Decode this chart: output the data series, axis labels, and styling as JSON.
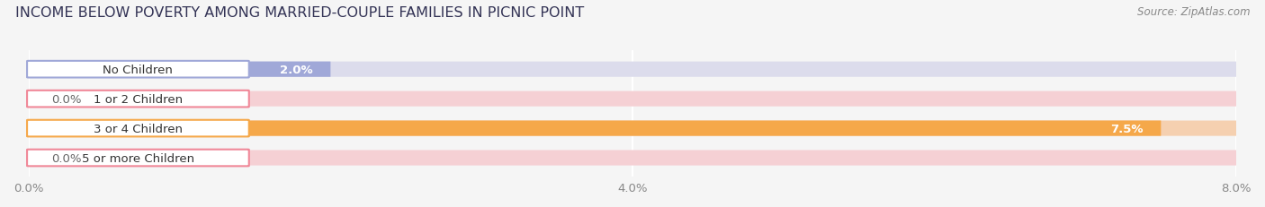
{
  "title": "INCOME BELOW POVERTY AMONG MARRIED-COUPLE FAMILIES IN PICNIC POINT",
  "source": "Source: ZipAtlas.com",
  "categories": [
    "No Children",
    "1 or 2 Children",
    "3 or 4 Children",
    "5 or more Children"
  ],
  "values": [
    2.0,
    0.0,
    7.5,
    0.0
  ],
  "bar_colors": [
    "#a0a8d8",
    "#f08898",
    "#f5a84a",
    "#f08898"
  ],
  "bar_track_colors": [
    "#dcdcec",
    "#f5d0d4",
    "#f5d0b0",
    "#f5d0d4"
  ],
  "label_border_colors": [
    "#a0a8d8",
    "#f08898",
    "#f5a84a",
    "#f08898"
  ],
  "xlim": [
    0,
    8.0
  ],
  "xtick_labels": [
    "0.0%",
    "4.0%",
    "8.0%"
  ],
  "xtick_values": [
    0.0,
    4.0,
    8.0
  ],
  "bar_height": 0.52,
  "background_color": "#f5f5f5",
  "title_fontsize": 11.5,
  "label_fontsize": 9.5,
  "value_fontsize": 9.5,
  "source_fontsize": 8.5
}
